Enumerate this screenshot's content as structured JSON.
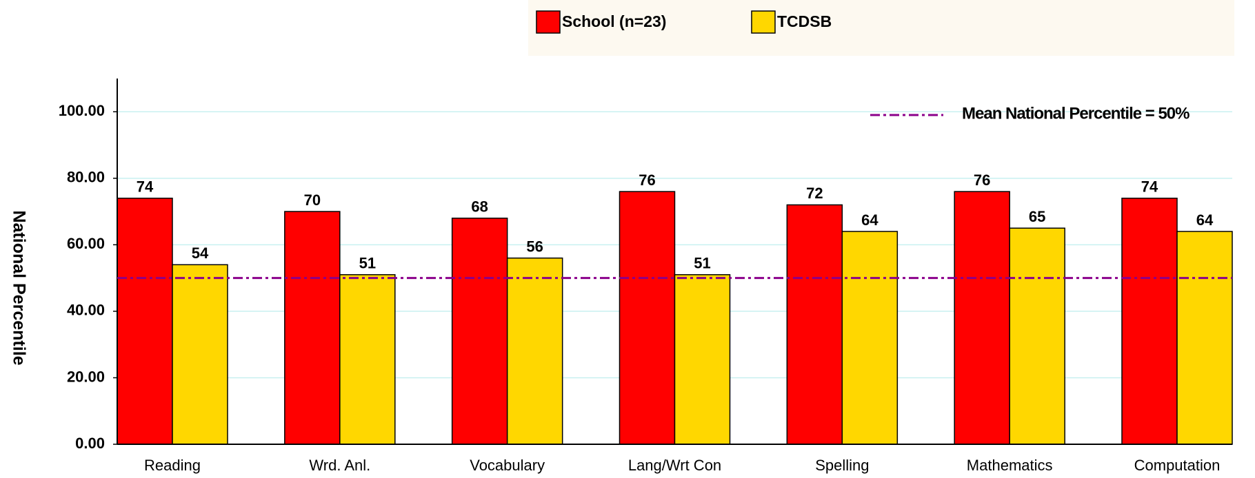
{
  "chart_data": {
    "type": "bar",
    "y_label": "National Percentile",
    "categories": [
      "Reading",
      "Wrd. Anl.",
      "Vocabulary",
      "Lang/Wrt Con",
      "Spelling",
      "Mathematics",
      "Computation"
    ],
    "series": [
      {
        "name": "School (n=23)",
        "color": "#ff0000",
        "values": [
          74,
          70,
          68,
          76,
          72,
          76,
          74
        ]
      },
      {
        "name": "TCDSB",
        "color": "#ffd700",
        "values": [
          54,
          51,
          56,
          51,
          64,
          65,
          64
        ]
      }
    ],
    "ylim": [
      0,
      110
    ],
    "yticks": [
      {
        "value": 0,
        "label": "0.00"
      },
      {
        "value": 20,
        "label": "20.00"
      },
      {
        "value": 40,
        "label": "40.00"
      },
      {
        "value": 60,
        "label": "60.00"
      },
      {
        "value": 80,
        "label": "80.00"
      },
      {
        "value": 100,
        "label": "100.00"
      }
    ],
    "grid": true,
    "reference_line": {
      "value": 50,
      "label": "Mean National Percentile = 50%",
      "color": "#8b008b"
    }
  }
}
